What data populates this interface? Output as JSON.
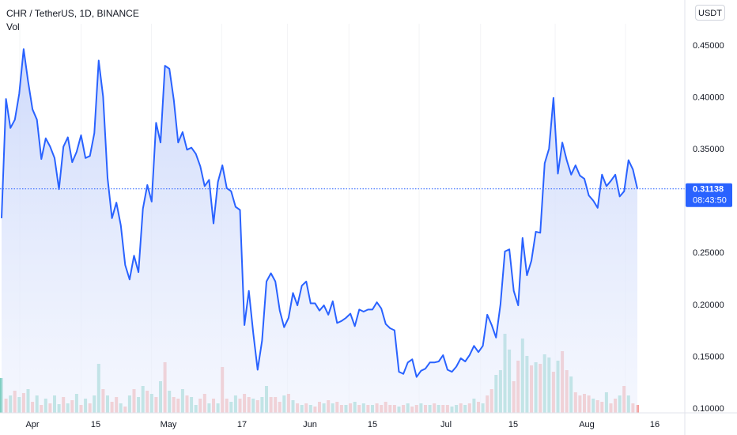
{
  "header": {
    "symbol": "CHR / TetherUS, 1D, BINANCE",
    "volume_label": "Vol",
    "currency": "USDT"
  },
  "price_tag": {
    "price": "0.31138",
    "countdown": "08:43:50"
  },
  "colors": {
    "line": "#2962ff",
    "area_top": "#c9d6fb",
    "area_bottom": "#eef2fd",
    "vol_up": "#7fcfc2",
    "vol_down": "#f4a09c",
    "price_tag_bg": "#2962ff"
  },
  "chart_data": {
    "type": "area",
    "title": "CHR / TetherUS, 1D, BINANCE",
    "ylim": [
      0.1,
      0.4575
    ],
    "y_ticks": [
      "0.10000",
      "0.15000",
      "0.20000",
      "0.25000",
      "0.30000",
      "0.35000",
      "0.40000",
      "0.45000"
    ],
    "x_ticks": [
      "Apr",
      "15",
      "May",
      "17",
      "Jun",
      "15",
      "Jul",
      "15",
      "Aug",
      "16"
    ],
    "x_tick_days": [
      0,
      14,
      30,
      46,
      61,
      75,
      91,
      105,
      122,
      138
    ],
    "x_range_days": [
      -4,
      157
    ],
    "last_price": 0.31138,
    "series": [
      {
        "values": [
          0.283,
          0.398,
          0.37,
          0.378,
          0.403,
          0.446,
          0.415,
          0.388,
          0.378,
          0.34,
          0.36,
          0.352,
          0.341,
          0.311,
          0.352,
          0.361,
          0.337,
          0.347,
          0.363,
          0.341,
          0.343,
          0.365,
          0.435,
          0.4,
          0.322,
          0.283,
          0.298,
          0.276,
          0.238,
          0.224,
          0.247,
          0.231,
          0.292,
          0.315,
          0.299,
          0.375,
          0.356,
          0.43,
          0.427,
          0.397,
          0.356,
          0.366,
          0.349,
          0.351,
          0.345,
          0.333,
          0.314,
          0.32,
          0.278,
          0.318,
          0.334,
          0.312,
          0.309,
          0.294,
          0.291,
          0.18,
          0.213,
          0.172,
          0.137,
          0.165,
          0.222,
          0.23,
          0.222,
          0.194,
          0.178,
          0.187,
          0.211,
          0.199,
          0.218,
          0.222,
          0.201,
          0.201,
          0.194,
          0.199,
          0.19,
          0.203,
          0.182,
          0.184,
          0.187,
          0.191,
          0.179,
          0.195,
          0.193,
          0.195,
          0.195,
          0.202,
          0.196,
          0.181,
          0.177,
          0.175,
          0.135,
          0.133,
          0.144,
          0.147,
          0.13,
          0.136,
          0.138,
          0.144,
          0.144,
          0.145,
          0.151,
          0.137,
          0.135,
          0.14,
          0.148,
          0.145,
          0.151,
          0.16,
          0.154,
          0.16,
          0.19,
          0.18,
          0.168,
          0.2,
          0.251,
          0.253,
          0.213,
          0.199,
          0.264,
          0.228,
          0.242,
          0.27,
          0.269,
          0.336,
          0.35,
          0.399,
          0.326,
          0.356,
          0.339,
          0.325,
          0.334,
          0.324,
          0.321,
          0.305,
          0.3,
          0.293,
          0.325,
          0.314,
          0.319,
          0.325,
          0.304,
          0.309,
          0.339,
          0.33,
          0.3114
        ]
      }
    ],
    "volume": {
      "up": [
        true,
        false,
        true,
        false,
        true,
        false,
        true,
        false,
        true,
        false,
        true,
        false,
        true,
        true,
        false,
        true,
        false,
        true,
        false,
        true,
        false,
        true,
        true,
        false,
        true,
        false,
        false,
        true,
        false,
        true,
        false,
        true,
        true,
        false,
        true,
        false,
        true,
        false,
        true,
        false,
        false,
        true,
        false,
        true,
        true,
        false,
        false,
        true,
        false,
        true,
        false,
        false,
        true,
        true,
        false,
        false,
        false,
        true,
        false,
        true,
        true,
        false,
        false,
        false,
        true,
        false,
        true,
        false,
        true,
        false,
        true,
        false,
        false,
        true,
        false,
        true,
        false,
        false,
        true,
        false,
        true,
        false,
        true,
        false,
        true,
        false,
        false,
        false,
        false,
        false,
        true,
        false,
        true,
        false,
        false,
        true,
        false,
        true,
        false,
        true,
        false,
        false,
        true,
        true,
        false,
        true,
        false,
        true,
        false,
        true,
        false,
        false,
        true,
        true,
        true,
        true,
        false,
        false,
        true,
        true,
        false,
        true,
        false,
        true,
        true,
        false,
        true,
        false,
        false,
        true,
        false,
        false,
        false,
        false,
        true,
        false,
        false,
        true,
        false,
        false,
        true,
        false,
        true,
        false,
        false
      ],
      "heights": [
        44,
        18,
        22,
        28,
        20,
        25,
        30,
        14,
        22,
        10,
        18,
        12,
        22,
        11,
        20,
        12,
        16,
        24,
        10,
        18,
        12,
        22,
        62,
        30,
        22,
        14,
        20,
        12,
        8,
        22,
        30,
        20,
        34,
        28,
        24,
        20,
        40,
        64,
        28,
        20,
        18,
        30,
        22,
        20,
        10,
        18,
        24,
        12,
        18,
        12,
        58,
        18,
        14,
        22,
        18,
        24,
        20,
        18,
        16,
        20,
        34,
        20,
        20,
        14,
        22,
        24,
        16,
        12,
        10,
        12,
        10,
        8,
        14,
        12,
        16,
        12,
        14,
        10,
        10,
        12,
        14,
        10,
        12,
        10,
        10,
        12,
        10,
        14,
        10,
        10,
        8,
        10,
        12,
        8,
        10,
        12,
        10,
        10,
        12,
        10,
        10,
        10,
        8,
        10,
        12,
        10,
        12,
        18,
        14,
        12,
        22,
        30,
        48,
        54,
        100,
        80,
        40,
        66,
        94,
        72,
        60,
        64,
        62,
        74,
        70,
        52,
        66,
        78,
        54,
        46,
        26,
        22,
        24,
        22,
        18,
        16,
        14,
        26,
        12,
        18,
        22,
        34,
        22,
        12,
        10
      ]
    }
  }
}
